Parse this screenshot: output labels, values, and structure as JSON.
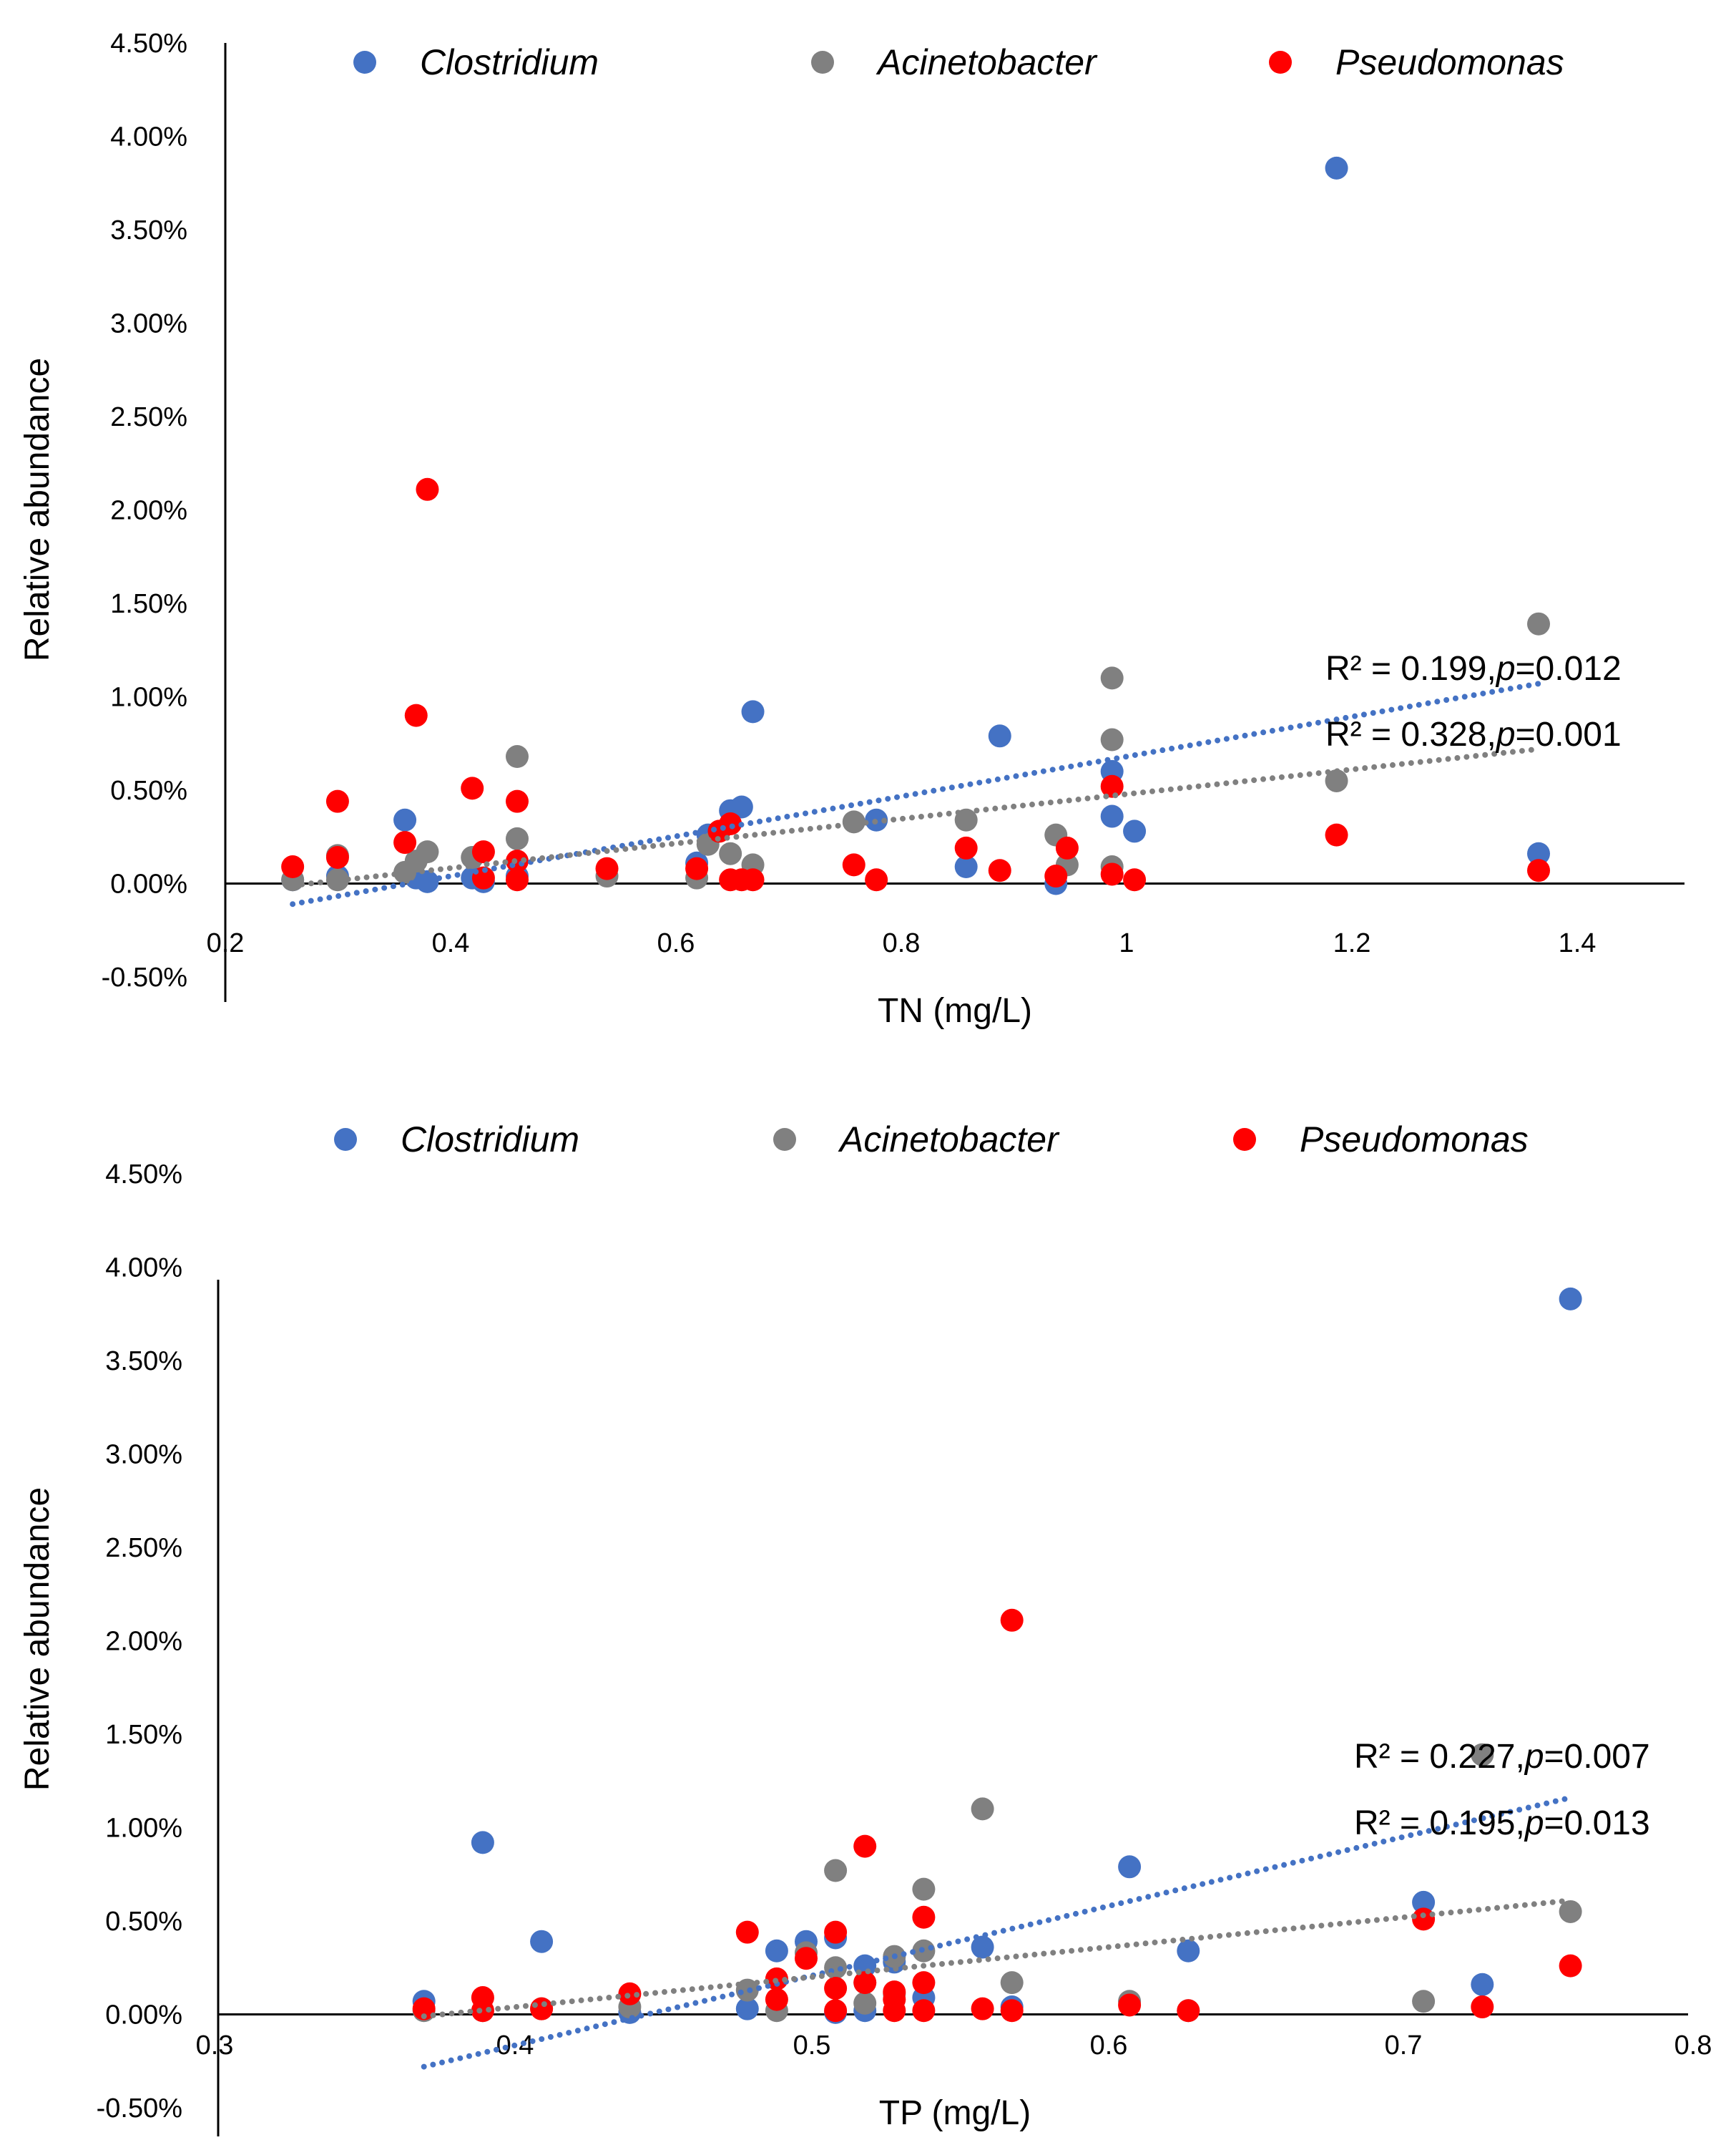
{
  "chart_data": [
    {
      "type": "scatter",
      "xlabel": "TN (mg/L)",
      "ylabel": "Relative abundance",
      "xlim": [
        0.2,
        1.5
      ],
      "ylim": [
        -0.005,
        0.045
      ],
      "xticks": [
        0.2,
        0.4,
        0.6,
        0.8,
        1,
        1.2,
        1.4
      ],
      "xtick_labels": [
        "0.2",
        "0.4",
        "0.6",
        "0.8",
        "1",
        "1.2",
        "1.4"
      ],
      "yticks": [
        -0.005,
        0,
        0.005,
        0.01,
        0.015,
        0.02,
        0.025,
        0.03,
        0.035,
        0.04,
        0.045
      ],
      "ytick_labels": [
        "-0.50%",
        "0.00%",
        "0.50%",
        "1.00%",
        "1.50%",
        "2.00%",
        "2.50%",
        "3.00%",
        "3.50%",
        "4.00%",
        "4.50%"
      ],
      "grid": false,
      "legend_position": "top",
      "series": [
        {
          "name": "Clostridium",
          "color": "#4472C4",
          "points": [
            [
              0.26,
              0.0002
            ],
            [
              0.3,
              0.0004
            ],
            [
              0.36,
              0.0034
            ],
            [
              0.37,
              0.0003
            ],
            [
              0.38,
              0.0001
            ],
            [
              0.42,
              0.0003
            ],
            [
              0.43,
              0.0001
            ],
            [
              0.46,
              0.0004
            ],
            [
              0.62,
              0.0011
            ],
            [
              0.63,
              0.0026
            ],
            [
              0.65,
              0.0039
            ],
            [
              0.66,
              0.0041
            ],
            [
              0.67,
              0.0092
            ],
            [
              0.78,
              0.0034
            ],
            [
              0.86,
              0.0009
            ],
            [
              0.89,
              0.0079
            ],
            [
              0.94,
              0.0
            ],
            [
              0.99,
              0.006
            ],
            [
              0.99,
              0.0036
            ],
            [
              1.01,
              0.0028
            ],
            [
              1.19,
              0.0383
            ],
            [
              1.37,
              0.0016
            ]
          ],
          "trendline": {
            "x": [
              0.26,
              1.37
            ],
            "y": [
              -0.0011,
              0.0107
            ],
            "label": "R² = 0.199,",
            "p_label": "p",
            "p_value": "=0.012"
          }
        },
        {
          "name": "Acinetobacter",
          "color": "#808080",
          "points": [
            [
              0.26,
              0.0002
            ],
            [
              0.3,
              0.0015
            ],
            [
              0.3,
              0.0002
            ],
            [
              0.36,
              0.0006
            ],
            [
              0.37,
              0.0012
            ],
            [
              0.38,
              0.0017
            ],
            [
              0.42,
              0.0014
            ],
            [
              0.46,
              0.0068
            ],
            [
              0.46,
              0.0024
            ],
            [
              0.54,
              0.0004
            ],
            [
              0.62,
              0.0003
            ],
            [
              0.63,
              0.0021
            ],
            [
              0.65,
              0.0016
            ],
            [
              0.67,
              0.001
            ],
            [
              0.76,
              0.0033
            ],
            [
              0.86,
              0.0034
            ],
            [
              0.94,
              0.0026
            ],
            [
              0.95,
              0.001
            ],
            [
              0.99,
              0.011
            ],
            [
              0.99,
              0.0077
            ],
            [
              0.99,
              0.0009
            ],
            [
              1.19,
              0.0055
            ],
            [
              1.37,
              0.0139
            ]
          ],
          "trendline": {
            "x": [
              0.26,
              1.37
            ],
            "y": [
              -0.0001,
              0.0072
            ],
            "label": "R² = 0.328,",
            "p_label": "p",
            "p_value": "=0.001"
          }
        },
        {
          "name": "Pseudomonas",
          "color": "#FF0000",
          "points": [
            [
              0.26,
              0.0009
            ],
            [
              0.3,
              0.0044
            ],
            [
              0.3,
              0.0014
            ],
            [
              0.36,
              0.0022
            ],
            [
              0.37,
              0.009
            ],
            [
              0.38,
              0.0211
            ],
            [
              0.42,
              0.0051
            ],
            [
              0.43,
              0.0017
            ],
            [
              0.43,
              0.0003
            ],
            [
              0.46,
              0.0044
            ],
            [
              0.46,
              0.0012
            ],
            [
              0.46,
              0.0002
            ],
            [
              0.54,
              0.0008
            ],
            [
              0.62,
              0.0008
            ],
            [
              0.64,
              0.0028
            ],
            [
              0.65,
              0.0032
            ],
            [
              0.65,
              0.0002
            ],
            [
              0.66,
              0.0002
            ],
            [
              0.67,
              0.0002
            ],
            [
              0.76,
              0.001
            ],
            [
              0.78,
              0.0002
            ],
            [
              0.86,
              0.0019
            ],
            [
              0.89,
              0.0007
            ],
            [
              0.94,
              0.0004
            ],
            [
              0.95,
              0.0019
            ],
            [
              0.99,
              0.0052
            ],
            [
              0.99,
              0.0005
            ],
            [
              1.01,
              0.0002
            ],
            [
              1.19,
              0.0026
            ],
            [
              1.37,
              0.0007
            ]
          ]
        }
      ]
    },
    {
      "type": "scatter",
      "xlabel": "TP (mg/L)",
      "ylabel": "Relative abundance",
      "xlim": [
        0.3,
        0.8
      ],
      "ylim": [
        -0.005,
        0.045
      ],
      "xticks": [
        0.3,
        0.4,
        0.5,
        0.6,
        0.7,
        0.8
      ],
      "xtick_labels": [
        "0.3",
        "0.4",
        "0.5",
        "0.6",
        "0.7",
        "0.8"
      ],
      "yticks": [
        -0.005,
        0,
        0.005,
        0.01,
        0.015,
        0.02,
        0.025,
        0.03,
        0.035,
        0.04,
        0.045
      ],
      "ytick_labels": [
        "-0.50%",
        "0.00%",
        "0.50%",
        "1.00%",
        "1.50%",
        "2.00%",
        "2.50%",
        "3.00%",
        "3.50%",
        "4.00%",
        "4.50%"
      ],
      "grid": false,
      "legend_position": "top",
      "series": [
        {
          "name": "Clostridium",
          "color": "#4472C4",
          "points": [
            [
              0.37,
              0.0007
            ],
            [
              0.39,
              0.0092
            ],
            [
              0.41,
              0.0039
            ],
            [
              0.44,
              0.0001
            ],
            [
              0.48,
              0.0003
            ],
            [
              0.49,
              0.0034
            ],
            [
              0.5,
              0.0039
            ],
            [
              0.51,
              0.0041
            ],
            [
              0.51,
              0.0001
            ],
            [
              0.52,
              0.0026
            ],
            [
              0.52,
              0.0002
            ],
            [
              0.53,
              0.0028
            ],
            [
              0.54,
              0.0009
            ],
            [
              0.56,
              0.0036
            ],
            [
              0.57,
              0.0004
            ],
            [
              0.61,
              0.0079
            ],
            [
              0.63,
              0.0034
            ],
            [
              0.71,
              0.006
            ],
            [
              0.73,
              0.0016
            ],
            [
              0.76,
              0.0383
            ]
          ],
          "trendline": {
            "x": [
              0.37,
              0.76
            ],
            "y": [
              -0.0028,
              0.0116
            ],
            "label": "R² = 0.227,",
            "p_label": "p",
            "p_value": "=0.007"
          }
        },
        {
          "name": "Acinetobacter",
          "color": "#808080",
          "points": [
            [
              0.37,
              0.0002
            ],
            [
              0.39,
              0.0002
            ],
            [
              0.41,
              0.0003
            ],
            [
              0.44,
              0.0004
            ],
            [
              0.48,
              0.0013
            ],
            [
              0.49,
              0.0002
            ],
            [
              0.5,
              0.0033
            ],
            [
              0.51,
              0.0077
            ],
            [
              0.51,
              0.0025
            ],
            [
              0.52,
              0.0017
            ],
            [
              0.52,
              0.0006
            ],
            [
              0.53,
              0.0031
            ],
            [
              0.53,
              0.0011
            ],
            [
              0.54,
              0.0067
            ],
            [
              0.54,
              0.0034
            ],
            [
              0.56,
              0.011
            ],
            [
              0.57,
              0.0017
            ],
            [
              0.61,
              0.0007
            ],
            [
              0.63,
              0.0002
            ],
            [
              0.71,
              0.0007
            ],
            [
              0.73,
              0.0139
            ],
            [
              0.76,
              0.0055
            ]
          ],
          "trendline": {
            "x": [
              0.37,
              0.76
            ],
            "y": [
              -0.0001,
              0.0061
            ],
            "label": "R² = 0.195,",
            "p_label": "p",
            "p_value": "=0.013"
          }
        },
        {
          "name": "Pseudomonas",
          "color": "#FF0000",
          "points": [
            [
              0.37,
              0.0003
            ],
            [
              0.39,
              0.0009
            ],
            [
              0.39,
              0.0002
            ],
            [
              0.41,
              0.0003
            ],
            [
              0.44,
              0.0011
            ],
            [
              0.48,
              0.0044
            ],
            [
              0.49,
              0.0019
            ],
            [
              0.49,
              0.0008
            ],
            [
              0.5,
              0.003
            ],
            [
              0.51,
              0.0044
            ],
            [
              0.51,
              0.0014
            ],
            [
              0.51,
              0.0002
            ],
            [
              0.52,
              0.009
            ],
            [
              0.52,
              0.0017
            ],
            [
              0.53,
              0.0012
            ],
            [
              0.53,
              0.0008
            ],
            [
              0.53,
              0.0002
            ],
            [
              0.54,
              0.0052
            ],
            [
              0.54,
              0.0017
            ],
            [
              0.54,
              0.0002
            ],
            [
              0.56,
              0.0003
            ],
            [
              0.57,
              0.0211
            ],
            [
              0.57,
              0.0002
            ],
            [
              0.61,
              0.0005
            ],
            [
              0.63,
              0.0002
            ],
            [
              0.71,
              0.0051
            ],
            [
              0.73,
              0.0004
            ],
            [
              0.76,
              0.0026
            ]
          ]
        }
      ]
    }
  ]
}
